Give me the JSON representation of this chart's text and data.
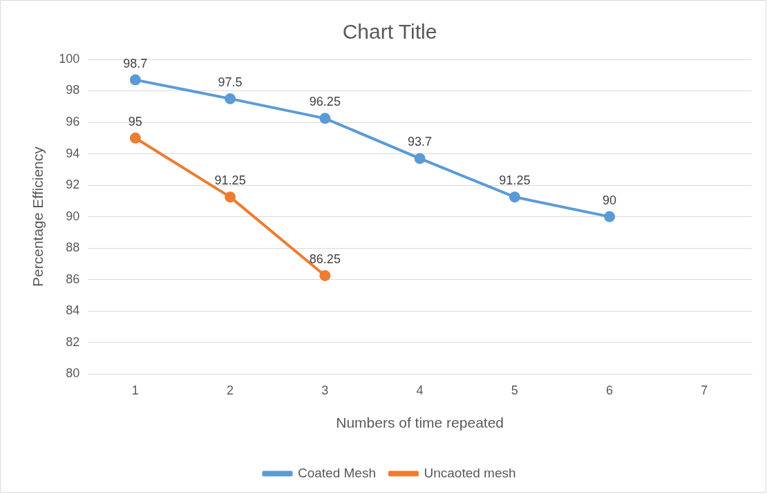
{
  "chart_data": {
    "type": "line",
    "title": "Chart Title",
    "xlabel": "Numbers of time repeated",
    "ylabel": "Percentage Efficiency",
    "categories": [
      "1",
      "2",
      "3",
      "4",
      "5",
      "6",
      "7"
    ],
    "series": [
      {
        "name": "Coated Mesh",
        "color": "#5b9bd5",
        "values": [
          98.7,
          97.5,
          96.25,
          93.7,
          91.25,
          90,
          null
        ]
      },
      {
        "name": "Uncaoted mesh",
        "color": "#ed7d31",
        "values": [
          95,
          91.25,
          86.25,
          null,
          null,
          null,
          null
        ]
      }
    ],
    "ylim": [
      80,
      100
    ],
    "yticks": [
      80,
      82,
      84,
      86,
      88,
      90,
      92,
      94,
      96,
      98,
      100
    ],
    "grid": "y",
    "legend": "bottom",
    "data_labels": true,
    "marker": "circle",
    "line_style": "solid"
  }
}
